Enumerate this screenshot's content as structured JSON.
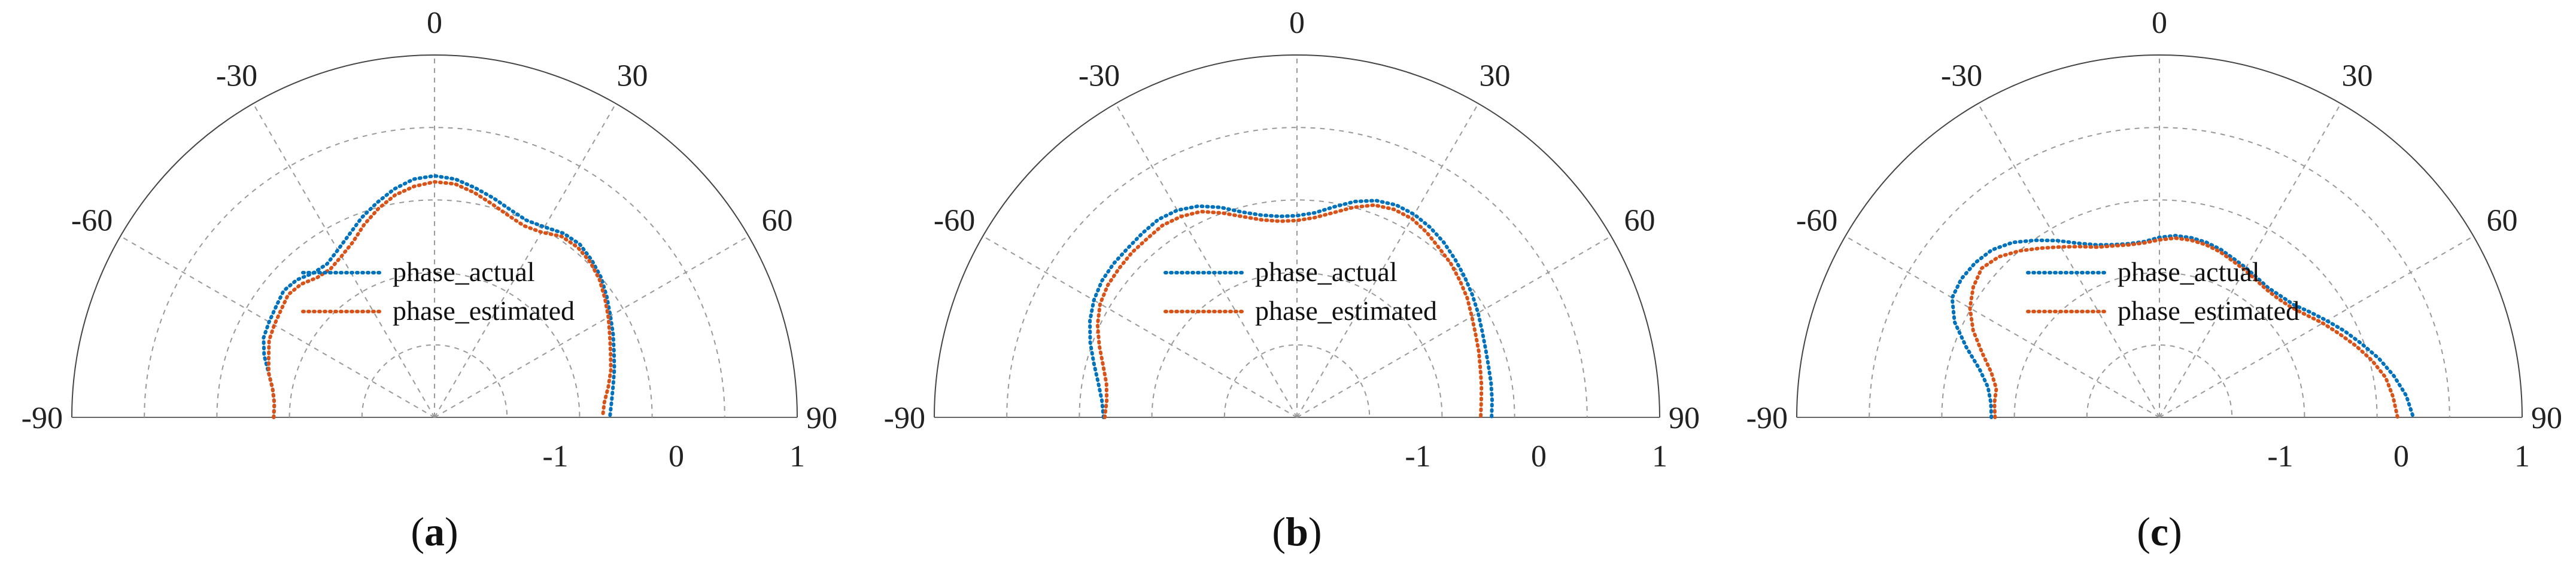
{
  "chart_data": [
    {
      "type": "polar",
      "panel": "a",
      "caption": {
        "open": "(",
        "letter": "a",
        "close": ")"
      },
      "theta_range": [
        -90,
        90
      ],
      "theta_ticks": [
        "-90",
        "-60",
        "-30",
        "0",
        "30",
        "60",
        "90"
      ],
      "r_range": [
        -2,
        1
      ],
      "r_ticks": [
        "-1",
        "0",
        "1"
      ],
      "legend": {
        "actual": "phase_actual",
        "estimated": "phase_estimated",
        "placement": "center"
      },
      "colors": {
        "actual": "#0072BD",
        "estimated": "#D95319"
      },
      "series": [
        {
          "name": "phase_actual",
          "theta": [
            -90,
            -85,
            -80,
            -75,
            -70,
            -65,
            -60,
            -55,
            -50,
            -45,
            -40,
            -35,
            -30,
            -25,
            -20,
            -15,
            -10,
            -5,
            0,
            5,
            10,
            15,
            20,
            25,
            30,
            35,
            40,
            45,
            50,
            55,
            60,
            65,
            70,
            75,
            80,
            85,
            90
          ],
          "r": [
            -0.67,
            -0.67,
            -0.64,
            -0.58,
            -0.5,
            -0.44,
            -0.42,
            -0.4,
            -0.37,
            -0.39,
            -0.44,
            -0.45,
            -0.4,
            -0.33,
            -0.24,
            -0.16,
            -0.08,
            -0.02,
            0.0,
            -0.02,
            -0.07,
            -0.12,
            -0.17,
            -0.2,
            -0.18,
            -0.14,
            -0.13,
            -0.16,
            -0.2,
            -0.26,
            -0.32,
            -0.37,
            -0.42,
            -0.46,
            -0.5,
            -0.53,
            -0.55
          ]
        },
        {
          "name": "phase_estimated",
          "theta": [
            -90,
            -85,
            -80,
            -75,
            -70,
            -65,
            -60,
            -55,
            -50,
            -45,
            -40,
            -35,
            -30,
            -25,
            -20,
            -15,
            -10,
            -5,
            0,
            5,
            10,
            15,
            20,
            25,
            30,
            35,
            40,
            45,
            50,
            55,
            60,
            65,
            70,
            75,
            80,
            85,
            90
          ],
          "r": [
            -0.67,
            -0.67,
            -0.64,
            -0.58,
            -0.54,
            -0.49,
            -0.47,
            -0.45,
            -0.42,
            -0.44,
            -0.49,
            -0.5,
            -0.46,
            -0.4,
            -0.3,
            -0.21,
            -0.13,
            -0.08,
            -0.05,
            -0.06,
            -0.11,
            -0.17,
            -0.22,
            -0.25,
            -0.23,
            -0.17,
            -0.16,
            -0.18,
            -0.22,
            -0.28,
            -0.34,
            -0.4,
            -0.45,
            -0.49,
            -0.54,
            -0.59,
            -0.61
          ]
        }
      ]
    },
    {
      "type": "polar",
      "panel": "b",
      "caption": {
        "open": "(",
        "letter": "b",
        "close": ")"
      },
      "theta_range": [
        -90,
        90
      ],
      "theta_ticks": [
        "-90",
        "-60",
        "-30",
        "0",
        "30",
        "60",
        "90"
      ],
      "r_range": [
        -2,
        1
      ],
      "r_ticks": [
        "-1",
        "0",
        "1"
      ],
      "legend": {
        "actual": "phase_actual",
        "estimated": "phase_estimated",
        "placement": "center"
      },
      "colors": {
        "actual": "#0072BD",
        "estimated": "#D95319"
      },
      "series": [
        {
          "name": "phase_actual",
          "theta": [
            -90,
            -85,
            -80,
            -75,
            -70,
            -65,
            -60,
            -55,
            -50,
            -45,
            -40,
            -35,
            -30,
            -25,
            -20,
            -15,
            -10,
            -5,
            0,
            5,
            10,
            15,
            20,
            25,
            30,
            35,
            40,
            45,
            50,
            55,
            60,
            65,
            70,
            75,
            80,
            85,
            90
          ],
          "r": [
            -0.4,
            -0.38,
            -0.33,
            -0.26,
            -0.18,
            -0.11,
            -0.06,
            -0.03,
            -0.02,
            -0.02,
            -0.01,
            0.0,
            -0.02,
            -0.07,
            -0.15,
            -0.24,
            -0.3,
            -0.33,
            -0.33,
            -0.3,
            -0.23,
            -0.15,
            -0.09,
            -0.06,
            -0.06,
            -0.08,
            -0.11,
            -0.15,
            -0.19,
            -0.23,
            -0.27,
            -0.31,
            -0.34,
            -0.36,
            -0.37,
            -0.38,
            -0.39
          ]
        },
        {
          "name": "phase_estimated",
          "theta": [
            -90,
            -85,
            -80,
            -75,
            -70,
            -65,
            -60,
            -55,
            -50,
            -45,
            -40,
            -35,
            -30,
            -25,
            -20,
            -15,
            -10,
            -5,
            0,
            5,
            10,
            15,
            20,
            25,
            30,
            35,
            40,
            45,
            50,
            55,
            60,
            65,
            70,
            75,
            80,
            85,
            90
          ],
          "r": [
            -0.41,
            -0.42,
            -0.4,
            -0.34,
            -0.26,
            -0.18,
            -0.12,
            -0.09,
            -0.08,
            -0.07,
            -0.07,
            -0.06,
            -0.08,
            -0.12,
            -0.2,
            -0.28,
            -0.34,
            -0.37,
            -0.37,
            -0.34,
            -0.28,
            -0.2,
            -0.13,
            -0.1,
            -0.1,
            -0.13,
            -0.17,
            -0.2,
            -0.24,
            -0.28,
            -0.33,
            -0.37,
            -0.4,
            -0.43,
            -0.45,
            -0.47,
            -0.48
          ]
        }
      ]
    },
    {
      "type": "polar",
      "panel": "c",
      "caption": {
        "open": "(",
        "letter": "c",
        "close": ")"
      },
      "theta_range": [
        -90,
        90
      ],
      "theta_ticks": [
        "-90",
        "-60",
        "-30",
        "0",
        "30",
        "60",
        "90"
      ],
      "r_range": [
        -2,
        1
      ],
      "r_ticks": [
        "-1",
        "0",
        "1"
      ],
      "legend": {
        "actual": "phase_actual",
        "estimated": "phase_estimated",
        "placement": "center"
      },
      "colors": {
        "actual": "#0072BD",
        "estimated": "#D95319"
      },
      "series": [
        {
          "name": "phase_actual",
          "theta": [
            -90,
            -85,
            -80,
            -75,
            -70,
            -65,
            -60,
            -55,
            -50,
            -45,
            -40,
            -35,
            -30,
            -25,
            -20,
            -15,
            -10,
            -5,
            0,
            5,
            10,
            15,
            20,
            25,
            30,
            35,
            40,
            45,
            50,
            55,
            60,
            65,
            70,
            75,
            80,
            85,
            90
          ],
          "r": [
            -0.61,
            -0.6,
            -0.56,
            -0.46,
            -0.3,
            -0.13,
            -0.02,
            0.0,
            -0.01,
            -0.04,
            -0.11,
            -0.21,
            -0.31,
            -0.41,
            -0.48,
            -0.52,
            -0.54,
            -0.54,
            -0.51,
            -0.49,
            -0.49,
            -0.5,
            -0.52,
            -0.55,
            -0.57,
            -0.59,
            -0.6,
            -0.58,
            -0.55,
            -0.48,
            -0.4,
            -0.31,
            -0.22,
            -0.12,
            -0.03,
            0.05,
            0.1
          ]
        },
        {
          "name": "phase_estimated",
          "theta": [
            -90,
            -85,
            -80,
            -75,
            -70,
            -65,
            -60,
            -55,
            -50,
            -45,
            -40,
            -35,
            -30,
            -25,
            -20,
            -15,
            -10,
            -5,
            0,
            5,
            10,
            15,
            20,
            25,
            30,
            35,
            40,
            45,
            50,
            55,
            60,
            65,
            70,
            75,
            80,
            85,
            90
          ],
          "r": [
            -0.64,
            -0.63,
            -0.63,
            -0.56,
            -0.44,
            -0.3,
            -0.19,
            -0.12,
            -0.08,
            -0.12,
            -0.2,
            -0.29,
            -0.37,
            -0.44,
            -0.5,
            -0.53,
            -0.55,
            -0.55,
            -0.53,
            -0.51,
            -0.51,
            -0.52,
            -0.54,
            -0.57,
            -0.59,
            -0.61,
            -0.62,
            -0.61,
            -0.58,
            -0.52,
            -0.44,
            -0.36,
            -0.27,
            -0.18,
            -0.1,
            -0.06,
            -0.03
          ]
        }
      ]
    }
  ]
}
